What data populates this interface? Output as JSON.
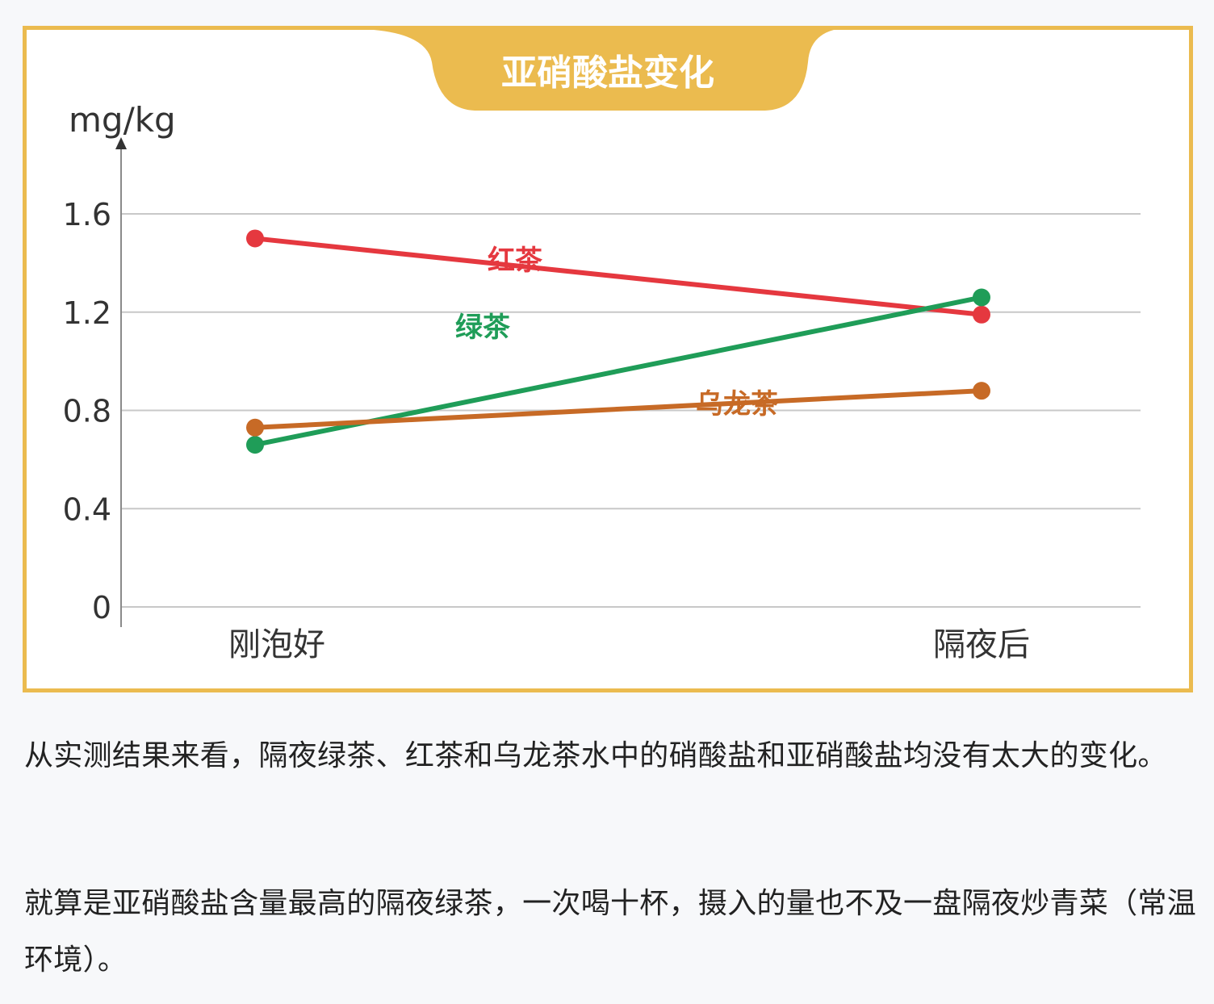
{
  "chart_data": {
    "type": "line",
    "title": "亚硝酸盐变化",
    "ylabel": "mg/kg",
    "xlabel": "",
    "categories": [
      "刚泡好",
      "隔夜后"
    ],
    "ylim": [
      0,
      1.6
    ],
    "yticks": [
      "0",
      "0.4",
      "0.8",
      "1.2",
      "1.6"
    ],
    "grid": true,
    "series": [
      {
        "name": "红茶",
        "values": [
          1.5,
          1.19
        ],
        "color": "#e5383f"
      },
      {
        "name": "绿茶",
        "values": [
          0.66,
          1.26
        ],
        "color": "#1f9d58"
      },
      {
        "name": "乌龙茶",
        "values": [
          0.73,
          0.88
        ],
        "color": "#c76a26"
      }
    ],
    "colors": {
      "frame": "#ebbb4f",
      "title_text": "#ffffff",
      "grid": "#c8c8c8",
      "axis": "#8a8a8a"
    }
  },
  "article": {
    "para1": "从实测结果来看，隔夜绿茶、红茶和乌龙茶水中的硝酸盐和亚硝酸盐均没有太大的变化。",
    "para2": "就算是亚硝酸盐含量最高的隔夜绿茶，一次喝十杯，摄入的量也不及一盘隔夜炒青菜（常温环境）。"
  }
}
